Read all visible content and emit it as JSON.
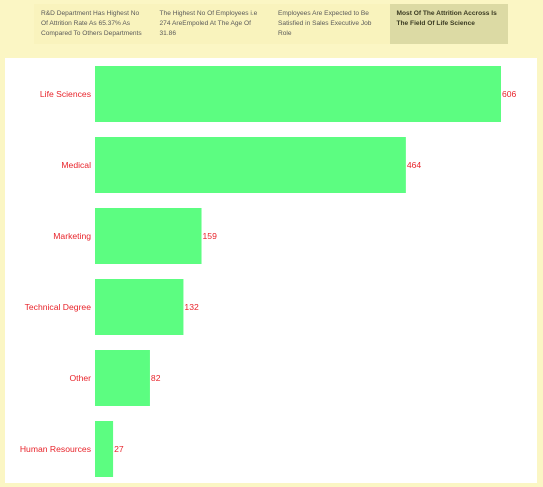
{
  "tabs": [
    {
      "label": "R&D Department Has Highest No Of Attrition Rate As  65.37% As Compared To Others Departments",
      "active": false
    },
    {
      "label": "The Highest  No Of Employees i.e 274  AreEmpoled At The Age Of 31.86",
      "active": false
    },
    {
      "label": "Employees Are Expected to Be Satisfied in Sales Executive Job Role",
      "active": false
    },
    {
      "label": "Most Of The Attrition Accross Is The Field Of Life Science",
      "active": true
    }
  ],
  "colors": {
    "background": "#fbf6c4",
    "bar": "#5cfd81",
    "label": "#e8232a",
    "active_tab": "#dcdaa4"
  },
  "chart_data": {
    "type": "bar",
    "orientation": "horizontal",
    "categories": [
      "Life Sciences",
      "Medical",
      "Marketing",
      "Technical Degree",
      "Other",
      "Human Resources"
    ],
    "values": [
      606,
      464,
      159,
      132,
      82,
      27
    ],
    "data_labels": [
      "606",
      "464",
      "159",
      "132",
      "82",
      "27"
    ],
    "xlim": [
      0,
      606
    ],
    "grid": false,
    "legend": "none"
  }
}
